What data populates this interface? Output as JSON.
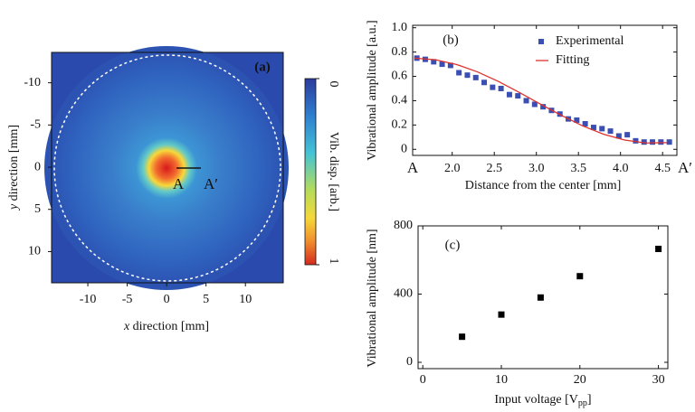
{
  "chart_data": [
    {
      "type": "heatmap",
      "label": "(a)",
      "xlabel": [
        "x",
        " direction [mm]"
      ],
      "ylabel": [
        "y",
        " direction [mm]"
      ],
      "xlim": [
        -14.6,
        14.8
      ],
      "ylim": [
        -13.6,
        13.7
      ],
      "y_inverted": true,
      "xticks": [
        -10,
        -5,
        0,
        5,
        10
      ],
      "yticks": [
        -10,
        -5,
        0,
        5,
        10
      ],
      "colorbar": {
        "label": "Vib. disp. [arb.]",
        "lim": [
          0,
          1
        ],
        "ticks": [
          0,
          1
        ]
      },
      "annotations": [
        "A",
        "A′"
      ]
    },
    {
      "type": "scatter",
      "label": "(b)",
      "xlabel": "Distance from the center [mm]",
      "ylabel": "Vibrational amplitude [a.u.]",
      "xlim": [
        1.53,
        4.67
      ],
      "ylim": [
        -0.05,
        1.02
      ],
      "xticks": [
        {
          "value": 2,
          "label": "2.0"
        },
        2.5,
        {
          "value": 3,
          "label": "3.0"
        },
        3.5,
        {
          "value": 4,
          "label": "4.0"
        },
        4.5
      ],
      "yticks": [
        0,
        0.2,
        0.4,
        0.6,
        0.8,
        {
          "value": 1,
          "label": "1.0"
        }
      ],
      "end_labels": [
        "A",
        "A′"
      ],
      "legend": "upper right",
      "series": [
        {
          "name": "Experimental",
          "color": "#3b4fb3",
          "marker": "square",
          "x": [
            1.58,
            1.68,
            1.78,
            1.88,
            1.98,
            2.08,
            2.18,
            2.28,
            2.38,
            2.48,
            2.58,
            2.68,
            2.78,
            2.88,
            2.98,
            3.08,
            3.18,
            3.28,
            3.38,
            3.48,
            3.58,
            3.68,
            3.78,
            3.88,
            3.98,
            4.08,
            4.18,
            4.28,
            4.38,
            4.48,
            4.58
          ],
          "values": [
            0.75,
            0.74,
            0.72,
            0.7,
            0.69,
            0.63,
            0.61,
            0.59,
            0.55,
            0.51,
            0.5,
            0.45,
            0.44,
            0.4,
            0.37,
            0.35,
            0.32,
            0.29,
            0.25,
            0.24,
            0.21,
            0.18,
            0.17,
            0.15,
            0.11,
            0.12,
            0.07,
            0.06,
            0.06,
            0.06,
            0.06
          ]
        },
        {
          "name": "Fitting",
          "color": "#e0312b",
          "marker": "line",
          "x": [
            1.55,
            1.8,
            2.05,
            2.3,
            2.55,
            2.8,
            3.05,
            3.3,
            3.55,
            3.8,
            4.05,
            4.3,
            4.55
          ],
          "values": [
            0.75,
            0.737,
            0.698,
            0.637,
            0.558,
            0.467,
            0.371,
            0.278,
            0.193,
            0.124,
            0.076,
            0.052,
            0.055
          ]
        }
      ]
    },
    {
      "type": "scatter",
      "label": "(c)",
      "xlabel": [
        "Input voltage [V",
        "pp",
        "]"
      ],
      "ylabel": "Vibrational amplitude [nm]",
      "xlim": [
        -0.6,
        31.2
      ],
      "ylim": [
        -37,
        800
      ],
      "xticks": [
        0,
        10,
        20,
        30
      ],
      "yticks": [
        0,
        400,
        800
      ],
      "series": [
        {
          "color": "#000000",
          "marker": "square",
          "x": [
            5,
            10,
            15,
            20,
            30
          ],
          "values": [
            150,
            280,
            380,
            505,
            665
          ]
        }
      ]
    }
  ]
}
